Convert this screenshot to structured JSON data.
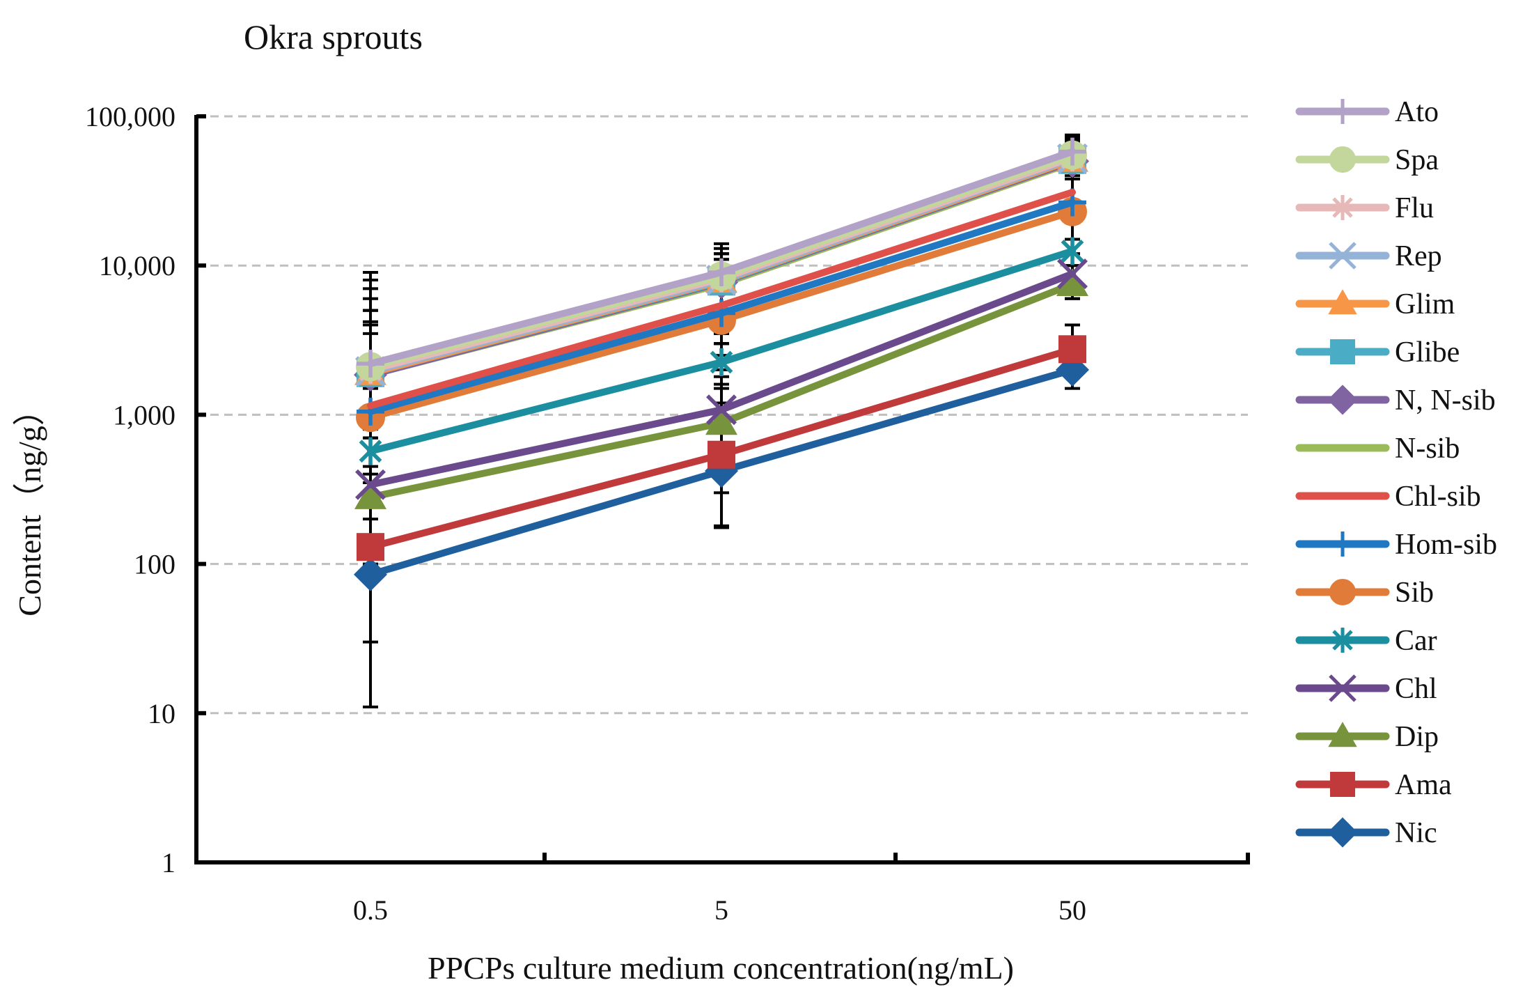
{
  "chart_data": {
    "type": "line",
    "title": "Okra sprouts",
    "xlabel": "PPCPs culture medium concentration(ng/mL)",
    "ylabel": "Content（ng/g）",
    "y_scale": "log",
    "ylim": [
      1,
      100000
    ],
    "y_ticks": [
      1,
      10,
      100,
      1000,
      10000,
      100000
    ],
    "y_tick_labels": [
      "1",
      "10",
      "100",
      "1,000",
      "10,000",
      "100,000"
    ],
    "categories": [
      "0.5",
      "5",
      "50"
    ],
    "grid": true,
    "legend_position": "right",
    "series": [
      {
        "name": "Ato",
        "color": "#b3a2c7",
        "marker": "plus",
        "values": [
          2200,
          9000,
          58000
        ],
        "err_low": [
          900,
          4000,
          20000
        ],
        "err_high": [
          9000,
          14000,
          75000
        ]
      },
      {
        "name": "Spa",
        "color": "#c3d69b",
        "marker": "circle",
        "values": [
          2100,
          8500,
          55000
        ],
        "err_low": [
          800,
          4000,
          20000
        ],
        "err_high": [
          8000,
          13000,
          72000
        ]
      },
      {
        "name": "Flu",
        "color": "#e6b9b8",
        "marker": "star",
        "values": [
          2000,
          8200,
          53000
        ],
        "err_low": [
          800,
          3500,
          20000
        ],
        "err_high": [
          7000,
          12000,
          70000
        ]
      },
      {
        "name": "Rep",
        "color": "#95b3d7",
        "marker": "x",
        "values": [
          1950,
          8000,
          52000
        ],
        "err_low": [
          800,
          3500,
          20000
        ],
        "err_high": [
          6000,
          12000,
          70000
        ]
      },
      {
        "name": "Glim",
        "color": "#f79646",
        "marker": "triangle",
        "values": [
          1900,
          7900,
          51000
        ],
        "err_low": [
          700,
          3000,
          20000
        ],
        "err_high": [
          5000,
          12000,
          68000
        ]
      },
      {
        "name": "Glibe",
        "color": "#4bacc6",
        "marker": "square",
        "values": [
          1900,
          7800,
          51000
        ],
        "err_low": [
          700,
          3000,
          20000
        ],
        "err_high": [
          5000,
          11000,
          68000
        ]
      },
      {
        "name": "N, N-sib",
        "color": "#8064a2",
        "marker": "diamond",
        "values": [
          1850,
          7700,
          50000
        ],
        "err_low": [
          700,
          3000,
          20000
        ],
        "err_high": [
          5000,
          11000,
          65000
        ]
      },
      {
        "name": "N-sib",
        "color": "#9bbb59",
        "marker": "none",
        "values": [
          1850,
          7500,
          49000
        ],
        "err_low": [
          700,
          3000,
          20000
        ],
        "err_high": [
          5000,
          11000,
          65000
        ]
      },
      {
        "name": "Chl-sib",
        "color": "#e0504a",
        "marker": "none",
        "values": [
          1150,
          5400,
          31000
        ],
        "err_low": [
          400,
          2000,
          15000
        ],
        "err_high": [
          4200,
          9000,
          45000
        ]
      },
      {
        "name": "Hom-sib",
        "color": "#1f78c1",
        "marker": "plus",
        "values": [
          1050,
          4800,
          26500
        ],
        "err_low": [
          350,
          1800,
          12000
        ],
        "err_high": [
          4000,
          8000,
          40000
        ]
      },
      {
        "name": "Sib",
        "color": "#e07b39",
        "marker": "circle",
        "values": [
          960,
          4300,
          23000
        ],
        "err_low": [
          300,
          1600,
          10000
        ],
        "err_high": [
          3500,
          7000,
          38000
        ]
      },
      {
        "name": "Car",
        "color": "#1b8fa0",
        "marker": "star",
        "values": [
          570,
          2250,
          12500
        ],
        "err_low": [
          200,
          900,
          7000
        ],
        "err_high": [
          2000,
          5000,
          20000
        ]
      },
      {
        "name": "Chl",
        "color": "#6a4a8c",
        "marker": "x",
        "values": [
          340,
          1080,
          8800
        ],
        "err_low": [
          100,
          400,
          6000
        ],
        "err_high": [
          1500,
          3000,
          12000
        ]
      },
      {
        "name": "Dip",
        "color": "#77933c",
        "marker": "triangle",
        "values": [
          280,
          880,
          7500
        ],
        "err_low": [
          80,
          300,
          6000
        ],
        "err_high": [
          1000,
          2500,
          10000
        ]
      },
      {
        "name": "Ama",
        "color": "#c0393b",
        "marker": "square",
        "values": [
          130,
          540,
          2750
        ],
        "err_low": [
          30,
          180,
          1800
        ],
        "err_high": [
          450,
          1500,
          4000
        ]
      },
      {
        "name": "Nic",
        "color": "#1f5f9e",
        "marker": "diamond",
        "values": [
          85,
          420,
          2000
        ],
        "err_low": [
          11,
          175,
          1500
        ],
        "err_high": [
          300,
          1200,
          3000
        ]
      }
    ]
  }
}
